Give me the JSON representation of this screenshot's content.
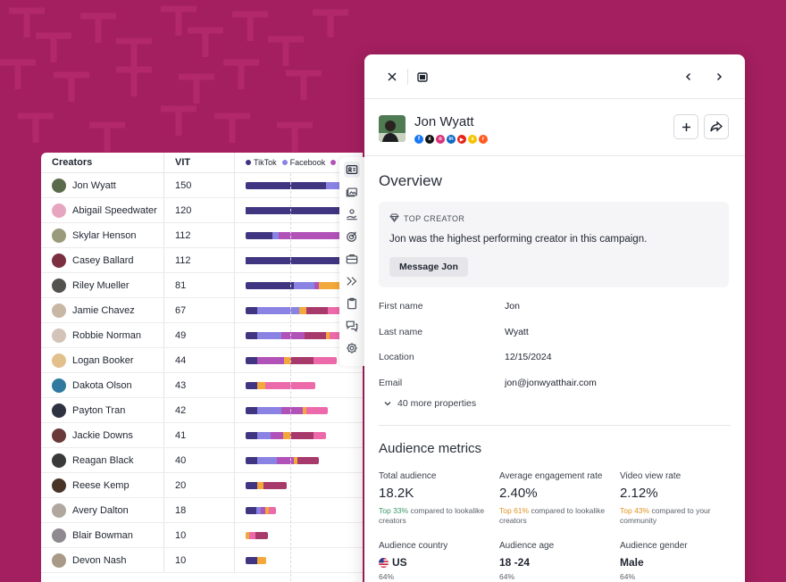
{
  "colors": {
    "background": "#a41f5f",
    "tiktok": "#3f3580",
    "facebook": "#8a83e3",
    "instagram": "#b152b8",
    "youtube": "#a8396b",
    "snapchat": "#f2a83b",
    "pink": "#ec6aaa"
  },
  "table": {
    "headers": {
      "creators": "Creators",
      "vit": "VIT"
    },
    "legend": [
      {
        "label": "TikTok",
        "color": "#3f3580"
      },
      {
        "label": "Facebook",
        "color": "#8a83e3"
      },
      {
        "label": "",
        "color": "#b152b8"
      }
    ],
    "rows": [
      {
        "name": "Jon Wyatt",
        "vit": "150",
        "avatar": "#5b6a4a",
        "segments": [
          {
            "w": 0.75,
            "c": "#3f3580"
          },
          {
            "w": 0.25,
            "c": "#8a83e3"
          }
        ]
      },
      {
        "name": "Abigail Speedwater",
        "vit": "120",
        "avatar": "#e7a6c0",
        "segments": [
          {
            "w": 1.0,
            "c": "#3f3580"
          }
        ]
      },
      {
        "name": "Skylar Henson",
        "vit": "112",
        "avatar": "#9a9a7c",
        "segments": [
          {
            "w": 0.25,
            "c": "#3f3580"
          },
          {
            "w": 0.06,
            "c": "#8a83e3"
          },
          {
            "w": 0.69,
            "c": "#b152b8"
          }
        ]
      },
      {
        "name": "Casey Ballard",
        "vit": "112",
        "avatar": "#7a3040",
        "segments": [
          {
            "w": 1.0,
            "c": "#3f3580"
          }
        ]
      },
      {
        "name": "Riley Mueller",
        "vit": "81",
        "avatar": "#54524e",
        "segments": [
          {
            "w": 0.45,
            "c": "#3f3580"
          },
          {
            "w": 0.19,
            "c": "#8a83e3"
          },
          {
            "w": 0.04,
            "c": "#b152b8"
          },
          {
            "w": 0.2,
            "c": "#f2a83b"
          },
          {
            "w": 0.12,
            "c": "#ec6aaa"
          }
        ]
      },
      {
        "name": "Jamie Chavez",
        "vit": "67",
        "avatar": "#c9b7a6",
        "segments": [
          {
            "w": 0.11,
            "c": "#3f3580"
          },
          {
            "w": 0.39,
            "c": "#8a83e3"
          },
          {
            "w": 0.07,
            "c": "#f2a83b"
          },
          {
            "w": 0.2,
            "c": "#a8396b"
          },
          {
            "w": 0.23,
            "c": "#ec6aaa"
          }
        ]
      },
      {
        "name": "Robbie Norman",
        "vit": "49",
        "avatar": "#d3c3b8",
        "segments": [
          {
            "w": 0.11,
            "c": "#3f3580"
          },
          {
            "w": 0.22,
            "c": "#8a83e3"
          },
          {
            "w": 0.22,
            "c": "#b152b8"
          },
          {
            "w": 0.2,
            "c": "#a8396b"
          },
          {
            "w": 0.03,
            "c": "#f2a83b"
          },
          {
            "w": 0.22,
            "c": "#ec6aaa"
          }
        ]
      },
      {
        "name": "Logan Booker",
        "vit": "44",
        "avatar": "#e2c08c",
        "segments": [
          {
            "w": 0.11,
            "c": "#3f3580"
          },
          {
            "w": 0.25,
            "c": "#b152b8"
          },
          {
            "w": 0.06,
            "c": "#f2a83b"
          },
          {
            "w": 0.21,
            "c": "#a8396b"
          },
          {
            "w": 0.22,
            "c": "#ec6aaa"
          }
        ]
      },
      {
        "name": "Dakota Olson",
        "vit": "43",
        "avatar": "#2f7a9e",
        "segments": [
          {
            "w": 0.11,
            "c": "#3f3580"
          },
          {
            "w": 0.07,
            "c": "#f2a83b"
          },
          {
            "w": 0.47,
            "c": "#ec6aaa"
          }
        ]
      },
      {
        "name": "Payton Tran",
        "vit": "42",
        "avatar": "#2f3240",
        "segments": [
          {
            "w": 0.11,
            "c": "#3f3580"
          },
          {
            "w": 0.22,
            "c": "#8a83e3"
          },
          {
            "w": 0.2,
            "c": "#b152b8"
          },
          {
            "w": 0.04,
            "c": "#f2a83b"
          },
          {
            "w": 0.2,
            "c": "#ec6aaa"
          }
        ]
      },
      {
        "name": "Jackie Downs",
        "vit": "41",
        "avatar": "#6a3a3a",
        "segments": [
          {
            "w": 0.11,
            "c": "#3f3580"
          },
          {
            "w": 0.12,
            "c": "#8a83e3"
          },
          {
            "w": 0.12,
            "c": "#b152b8"
          },
          {
            "w": 0.07,
            "c": "#f2a83b"
          },
          {
            "w": 0.21,
            "c": "#a8396b"
          },
          {
            "w": 0.12,
            "c": "#ec6aaa"
          }
        ]
      },
      {
        "name": "Reagan Black",
        "vit": "40",
        "avatar": "#3a3a3a",
        "segments": [
          {
            "w": 0.11,
            "c": "#3f3580"
          },
          {
            "w": 0.18,
            "c": "#8a83e3"
          },
          {
            "w": 0.16,
            "c": "#b152b8"
          },
          {
            "w": 0.03,
            "c": "#f2a83b"
          },
          {
            "w": 0.2,
            "c": "#a8396b"
          }
        ]
      },
      {
        "name": "Reese Kemp",
        "vit": "20",
        "avatar": "#4a3428",
        "segments": [
          {
            "w": 0.11,
            "c": "#3f3580"
          },
          {
            "w": 0.06,
            "c": "#f2a83b"
          },
          {
            "w": 0.21,
            "c": "#a8396b"
          }
        ]
      },
      {
        "name": "Avery Dalton",
        "vit": "18",
        "avatar": "#b0a89e",
        "segments": [
          {
            "w": 0.1,
            "c": "#3f3580"
          },
          {
            "w": 0.04,
            "c": "#8a83e3"
          },
          {
            "w": 0.04,
            "c": "#b152b8"
          },
          {
            "w": 0.04,
            "c": "#f2a83b"
          },
          {
            "w": 0.06,
            "c": "#ec6aaa"
          }
        ]
      },
      {
        "name": "Blair Bowman",
        "vit": "10",
        "avatar": "#8e8a90",
        "segments": [
          {
            "w": 0.03,
            "c": "#f2a83b"
          },
          {
            "w": 0.06,
            "c": "#ec6aaa"
          },
          {
            "w": 0.12,
            "c": "#a8396b"
          }
        ]
      },
      {
        "name": "Devon Nash",
        "vit": "10",
        "avatar": "#a89a86",
        "segments": [
          {
            "w": 0.11,
            "c": "#3f3580"
          },
          {
            "w": 0.08,
            "c": "#f2a83b"
          }
        ]
      }
    ]
  },
  "rail": {
    "icons": [
      "contact-card-icon",
      "image-gallery-icon",
      "hand-money-icon",
      "target-icon",
      "briefcase-icon",
      "chevrons-right-icon",
      "clipboard-icon",
      "chat-bubbles-icon",
      "settings-icon"
    ]
  },
  "panel": {
    "profile": {
      "name": "Jon Wyatt",
      "socials": [
        {
          "icon": "facebook-icon",
          "color": "#1877f2",
          "glyph": "f"
        },
        {
          "icon": "x-icon",
          "color": "#111111",
          "glyph": "x"
        },
        {
          "icon": "instagram-icon",
          "color": "#d8337a",
          "glyph": "o"
        },
        {
          "icon": "linkedin-icon",
          "color": "#0a66c2",
          "glyph": "in"
        },
        {
          "icon": "youtube-icon",
          "color": "#e62117",
          "glyph": "▶"
        },
        {
          "icon": "snapchat-icon",
          "color": "#f5c400",
          "glyph": "s"
        },
        {
          "icon": "reddit-icon",
          "color": "#ff5a1f",
          "glyph": "r"
        }
      ]
    },
    "overview_title": "Overview",
    "top_creator": {
      "label": "TOP CREATOR",
      "text": "Jon was the highest performing creator in this campaign.",
      "button": "Message Jon"
    },
    "properties": [
      {
        "label": "First name",
        "value": "Jon"
      },
      {
        "label": "Last name",
        "value": "Wyatt"
      },
      {
        "label": "Location",
        "value": "12/15/2024"
      },
      {
        "label": "Email",
        "value": "jon@jonwyatthair.com"
      }
    ],
    "more_properties": "40 more properties",
    "audience_title": "Audience metrics",
    "metrics": [
      {
        "label": "Total audience",
        "value": "18.2K",
        "highlight": "Top 33%",
        "note": " compared to lookalike creators",
        "tone": "green"
      },
      {
        "label": "Average engagement rate",
        "value": "2.40%",
        "highlight": "Top 61%",
        "note": " compared to lookalike creators",
        "tone": "orange"
      },
      {
        "label": "Video view rate",
        "value": "2.12%",
        "highlight": "Top 43%",
        "note": " compared to your community",
        "tone": "orange"
      }
    ],
    "audience": [
      {
        "label": "Audience country",
        "value": "US",
        "pct": "64%",
        "flag": true
      },
      {
        "label": "Audience age",
        "value": "18 -24",
        "pct": "64%",
        "flag": false
      },
      {
        "label": "Audience gender",
        "value": "Male",
        "pct": "64%",
        "flag": false
      }
    ]
  }
}
